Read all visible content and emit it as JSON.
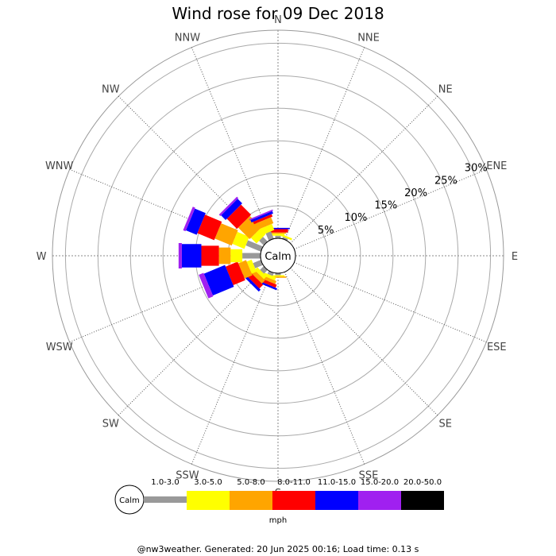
{
  "chart_data": {
    "type": "wind-rose",
    "title": "Wind rose for 09 Dec 2018",
    "directions": [
      "N",
      "NNE",
      "NE",
      "ENE",
      "E",
      "ESE",
      "SE",
      "SSE",
      "S",
      "SSW",
      "SW",
      "WSW",
      "W",
      "WNW",
      "NW",
      "NNW"
    ],
    "ring_labels": [
      "5%",
      "10%",
      "15%",
      "20%",
      "25%",
      "30%"
    ],
    "rmax_percent": 32,
    "calm_label": "Calm",
    "units": "mph",
    "speed_bins": [
      {
        "label": "1.0-3.0",
        "color": "#999999"
      },
      {
        "label": "3.0-5.0",
        "color": "#ffff00"
      },
      {
        "label": "5.0-8.0",
        "color": "#ffa500"
      },
      {
        "label": "8.0-11.0",
        "color": "#ff0000"
      },
      {
        "label": "11.0-15.0",
        "color": "#0000ff"
      },
      {
        "label": "15.0-20.0",
        "color": "#a020f0"
      },
      {
        "label": "20.0-50.0",
        "color": "#000000"
      }
    ],
    "series": [
      {
        "direction": "N",
        "values": [
          0.4,
          0.3,
          0.2,
          0.5,
          0.2,
          0,
          0
        ]
      },
      {
        "direction": "NNE",
        "values": [
          0.3,
          0.3,
          0,
          0,
          0,
          0,
          0
        ]
      },
      {
        "direction": "NE",
        "values": [
          0,
          0,
          0,
          0,
          0,
          0,
          0
        ]
      },
      {
        "direction": "ENE",
        "values": [
          0,
          0,
          0,
          0,
          0,
          0,
          0
        ]
      },
      {
        "direction": "E",
        "values": [
          0,
          0,
          0,
          0,
          0,
          0,
          0
        ]
      },
      {
        "direction": "ESE",
        "values": [
          0,
          0,
          0,
          0,
          0,
          0,
          0
        ]
      },
      {
        "direction": "SE",
        "values": [
          0,
          0,
          0,
          0,
          0,
          0,
          0
        ]
      },
      {
        "direction": "SSE",
        "values": [
          0,
          0,
          0,
          0,
          0,
          0,
          0
        ]
      },
      {
        "direction": "S",
        "values": [
          0.3,
          0.2,
          0.2,
          0,
          0,
          0,
          0
        ]
      },
      {
        "direction": "SSW",
        "values": [
          0.5,
          0.5,
          0.5,
          0.5,
          0.3,
          0,
          0
        ]
      },
      {
        "direction": "SW",
        "values": [
          0.8,
          0.6,
          0.7,
          0.8,
          0.4,
          0,
          0
        ]
      },
      {
        "direction": "WSW",
        "values": [
          1.3,
          0.8,
          1.3,
          2.0,
          3.5,
          0.8,
          0
        ]
      },
      {
        "direction": "W",
        "values": [
          2.8,
          1.8,
          1.8,
          2.7,
          3.0,
          0.5,
          0
        ]
      },
      {
        "direction": "WNW",
        "values": [
          2.5,
          2.0,
          2.8,
          2.8,
          1.8,
          0.4,
          0
        ]
      },
      {
        "direction": "NW",
        "values": [
          1.0,
          1.2,
          2.5,
          2.2,
          1.0,
          0.3,
          0
        ]
      },
      {
        "direction": "NNW",
        "values": [
          1.2,
          1.0,
          1.0,
          0.4,
          0.4,
          0.2,
          0
        ]
      }
    ]
  },
  "footer": "@nw3weather. Generated: 20 Jun 2025 00:16; Load time: 0.13 s"
}
